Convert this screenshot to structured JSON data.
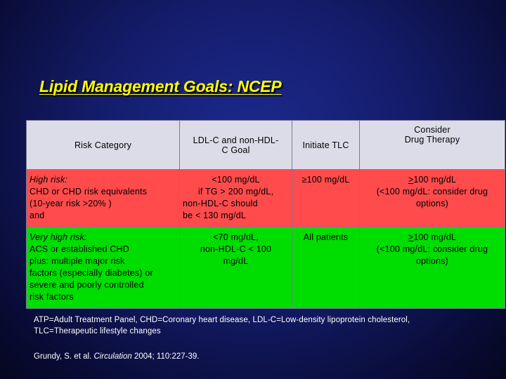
{
  "slide": {
    "title": "Lipid Management Goals: NCEP"
  },
  "table": {
    "headers": {
      "risk_category": "Risk Category",
      "goal_line1": "LDL-C and non-HDL-",
      "goal_line2": "C Goal",
      "initiate_tlc": "Initiate TLC",
      "drug_line1": "Consider",
      "drug_line2": "Drug Therapy"
    },
    "high_risk": {
      "category_line1": "High risk:",
      "category_line2": "CHD or CHD risk equivalents",
      "category_line3": "(10-year risk >20% )",
      "category_line4": "and",
      "goal_line1": "<100 mg/dL",
      "goal_line2": "if TG > 200 mg/dL,",
      "goal_line3": "non-HDL-C should",
      "goal_line4": "be < 130 mg/dL",
      "tlc": "≥100 mg/dL",
      "drug_symbol": ">",
      "drug_line1": "100 mg/dL",
      "drug_line2": "(<100 mg/dL: consider drug",
      "drug_line3": "options)"
    },
    "very_high_risk": {
      "category_line1": "Very high risk:",
      "category_line2": "ACS or established CHD",
      "category_line3": "plus: multiple major risk",
      "category_line4": "factors (especially diabetes) or",
      "category_line5": "severe and poorly controlled",
      "category_line6": "risk factors",
      "goal_line1": "<70 mg/dL,",
      "goal_line2": "non-HDL-C < 100",
      "goal_line3": "mg/dL",
      "tlc": "All patients",
      "drug_symbol": ">",
      "drug_line1": "100 mg/dL",
      "drug_line2": "(<100 mg/dL: consider drug",
      "drug_line3": "options)"
    }
  },
  "footnote": {
    "line1": "ATP=Adult Treatment Panel, CHD=Coronary heart disease, LDL-C=Low-density lipoprotein cholesterol,",
    "line2": "TLC=Therapeutic lifestyle changes"
  },
  "reference": {
    "authors": "Grundy, S. et al. ",
    "journal": "Circulation",
    "details": " 2004; 110:227-39."
  },
  "colors": {
    "title": "#ffff00",
    "header_row": "#dcdce8",
    "high_risk_row": "#ff4b4b",
    "very_high_risk_row": "#00dd00"
  }
}
